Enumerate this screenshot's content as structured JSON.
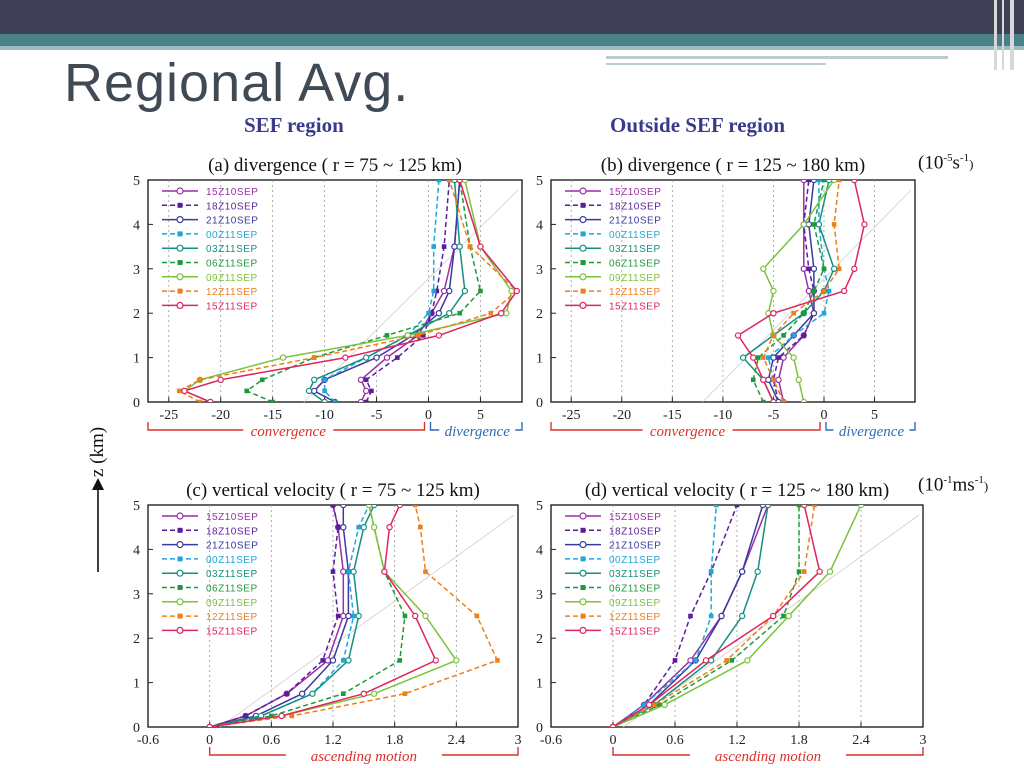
{
  "slide": {
    "title": "Regional Avg.",
    "region_left": "SEF region",
    "region_right": "Outside SEF region",
    "unit_div": {
      "base": "(10",
      "exp1": "-5",
      "mid": "s",
      "exp2": "-1",
      "end": ")"
    },
    "unit_w": {
      "base": "(10",
      "exp1": "-1",
      "mid": "ms",
      "exp2": "-1",
      "end": ")"
    }
  },
  "colors": {
    "15Z10SEP": "#9a2fa6",
    "18Z10SEP": "#5a1e9a",
    "21Z10SEP": "#3a3aa0",
    "00Z11SEP": "#1fa7d9",
    "03Z11SEP": "#13907e",
    "06Z11SEP": "#1f9a3a",
    "09Z11SEP": "#7cc23a",
    "12Z11SEP": "#ee7f1a",
    "15Z11SEP": "#e0245e"
  },
  "chart_data": [
    {
      "id": "a",
      "type": "line",
      "title": "(a) divergence ( r = 75 ~ 125 km)",
      "ylabel": "z (km)",
      "xlim": [
        -27,
        9
      ],
      "ylim": [
        0,
        5
      ],
      "xticks": [
        -25,
        -20,
        -15,
        -10,
        -5,
        0,
        5
      ],
      "yticks": [
        0,
        1,
        2,
        3,
        4,
        5
      ],
      "bracket_left": "convergence",
      "bracket_right": "divergence",
      "bracket_split": 0,
      "legend": "top-left",
      "series": [
        {
          "name": "15Z10SEP",
          "x": [
            -6.5,
            -6,
            -6.5,
            -4,
            -1,
            0.3,
            1.5,
            2.5,
            3
          ],
          "y": [
            0,
            0.25,
            0.5,
            1,
            1.5,
            2,
            2.5,
            3.5,
            5
          ]
        },
        {
          "name": "18Z10SEP",
          "x": [
            -6,
            -5.5,
            -6,
            -3,
            -0.5,
            0.3,
            0.8,
            1.5,
            2
          ],
          "y": [
            0,
            0.25,
            0.5,
            1,
            1.5,
            2,
            2.5,
            3.5,
            5
          ]
        },
        {
          "name": "21Z10SEP",
          "x": [
            -9,
            -11,
            -10,
            -5,
            -1.5,
            1,
            2,
            2.5,
            3
          ],
          "y": [
            0,
            0.25,
            0.5,
            1,
            1.5,
            2,
            2.5,
            3.5,
            5
          ]
        },
        {
          "name": "00Z11SEP",
          "x": [
            -9,
            -10,
            -10,
            -6,
            -2,
            0,
            0.5,
            0.5,
            1
          ],
          "y": [
            0,
            0.25,
            0.5,
            1,
            1.5,
            2,
            2.5,
            3.5,
            5
          ]
        },
        {
          "name": "03Z11SEP",
          "x": [
            -10,
            -11.5,
            -11,
            -6,
            -2,
            2,
            3.5,
            3,
            2.5
          ],
          "y": [
            0,
            0.25,
            0.5,
            1,
            1.5,
            2,
            2.5,
            3.5,
            5
          ]
        },
        {
          "name": "06Z11SEP",
          "x": [
            -15,
            -17.5,
            -16,
            -11,
            -4,
            3,
            5,
            4,
            3
          ],
          "y": [
            0,
            0.25,
            0.5,
            1,
            1.5,
            2,
            2.5,
            3.5,
            5
          ]
        },
        {
          "name": "09Z11SEP",
          "x": [
            -21,
            -23.5,
            -22,
            -14,
            -2,
            7.5,
            8,
            5,
            3.5
          ],
          "y": [
            0,
            0.25,
            0.5,
            1,
            1.5,
            2,
            2.5,
            3.5,
            5
          ]
        },
        {
          "name": "12Z11SEP",
          "x": [
            -22,
            -24,
            -22,
            -11,
            -1,
            6,
            8.5,
            4,
            2
          ],
          "y": [
            0,
            0.25,
            0.5,
            1,
            1.5,
            2,
            2.5,
            3.5,
            5
          ]
        },
        {
          "name": "15Z11SEP",
          "x": [
            -21,
            -23.5,
            -20,
            -8,
            1,
            7,
            8.5,
            5,
            3
          ],
          "y": [
            0,
            0.25,
            0.5,
            1,
            1.5,
            2,
            2.5,
            3.5,
            5
          ]
        }
      ]
    },
    {
      "id": "b",
      "type": "line",
      "title": "(b) divergence ( r = 125 ~ 180 km)",
      "xlim": [
        -27,
        9
      ],
      "ylim": [
        0,
        5
      ],
      "xticks": [
        -25,
        -20,
        -15,
        -10,
        -5,
        0,
        5
      ],
      "yticks": [
        0,
        1,
        2,
        3,
        4,
        5
      ],
      "bracket_left": "convergence",
      "bracket_right": "divergence",
      "bracket_split": 0,
      "legend": "top-left",
      "series": [
        {
          "name": "15Z10SEP",
          "x": [
            -4,
            -4.5,
            -4,
            -2,
            -1,
            -1.5,
            -2,
            -2,
            -2
          ],
          "y": [
            0,
            0.5,
            1,
            1.5,
            2,
            2.5,
            3,
            4,
            5
          ]
        },
        {
          "name": "18Z10SEP",
          "x": [
            -4.5,
            -5,
            -4.5,
            -2,
            -1,
            -1,
            -1.5,
            -2,
            -1.5
          ],
          "y": [
            0,
            0.5,
            1,
            1.5,
            2,
            2.5,
            3,
            4,
            5
          ]
        },
        {
          "name": "21Z10SEP",
          "x": [
            -4.5,
            -5.5,
            -5,
            -3,
            -1,
            -1,
            -1,
            -1.5,
            -1
          ],
          "y": [
            0,
            0.5,
            1,
            1.5,
            2,
            2.5,
            3,
            4,
            5
          ]
        },
        {
          "name": "00Z11SEP",
          "x": [
            -4,
            -5,
            -5.5,
            -3,
            0,
            0.5,
            0,
            -0.5,
            -0.5
          ],
          "y": [
            0,
            0.5,
            1,
            1.5,
            2,
            2.5,
            3,
            4,
            5
          ]
        },
        {
          "name": "03Z11SEP",
          "x": [
            -5,
            -6,
            -8,
            -5,
            -2,
            0,
            1,
            -0.5,
            0.5
          ],
          "y": [
            0,
            0.5,
            1,
            1.5,
            2,
            2.5,
            3,
            4,
            5
          ]
        },
        {
          "name": "06Z11SEP",
          "x": [
            -6,
            -7,
            -6.5,
            -4,
            -2,
            -1,
            0,
            -1,
            0
          ],
          "y": [
            0,
            0.5,
            1,
            1.5,
            2,
            2.5,
            3,
            4,
            5
          ]
        },
        {
          "name": "09Z11SEP",
          "x": [
            -2,
            -2.5,
            -3,
            -5,
            -5.5,
            -5,
            -6,
            -2,
            1
          ],
          "y": [
            0,
            0.5,
            1,
            1.5,
            2,
            2.5,
            3,
            4,
            5
          ]
        },
        {
          "name": "12Z11SEP",
          "x": [
            -4,
            -5,
            -6,
            -5,
            -3,
            0,
            1.5,
            1,
            1.5
          ],
          "y": [
            0,
            0.5,
            1,
            1.5,
            2,
            2.5,
            3,
            4,
            5
          ]
        },
        {
          "name": "15Z11SEP",
          "x": [
            -5,
            -6,
            -7,
            -8.5,
            -5,
            2,
            3,
            4,
            3
          ],
          "y": [
            0,
            0.5,
            1,
            1.5,
            2,
            2.5,
            3,
            4,
            5
          ]
        }
      ]
    },
    {
      "id": "c",
      "type": "line",
      "title": "(c) vertical velocity ( r = 75 ~ 125 km)",
      "xlim": [
        -0.6,
        3
      ],
      "ylim": [
        0,
        5
      ],
      "xticks": [
        -0.6,
        0,
        0.6,
        1.2,
        1.8,
        2.4,
        3
      ],
      "yticks": [
        0,
        1,
        2,
        3,
        4,
        5
      ],
      "bracket_label": "ascending motion",
      "legend": "top-left",
      "series": [
        {
          "name": "15Z10SEP",
          "x": [
            0,
            0.35,
            0.75,
            1.15,
            1.3,
            1.3,
            1.25,
            1.2
          ],
          "y": [
            0,
            0.25,
            0.75,
            1.5,
            2.5,
            3.5,
            4.5,
            5
          ]
        },
        {
          "name": "18Z10SEP",
          "x": [
            0,
            0.35,
            0.75,
            1.1,
            1.25,
            1.2,
            1.25,
            1.2
          ],
          "y": [
            0,
            0.25,
            0.75,
            1.5,
            2.5,
            3.5,
            4.5,
            5
          ]
        },
        {
          "name": "21Z10SEP",
          "x": [
            0,
            0.45,
            0.9,
            1.2,
            1.35,
            1.35,
            1.3,
            1.3
          ],
          "y": [
            0,
            0.25,
            0.75,
            1.5,
            2.5,
            3.5,
            4.5,
            5
          ]
        },
        {
          "name": "00Z11SEP",
          "x": [
            0,
            0.5,
            1.0,
            1.3,
            1.4,
            1.35,
            1.45,
            1.55
          ],
          "y": [
            0,
            0.25,
            0.75,
            1.5,
            2.5,
            3.5,
            4.5,
            5
          ]
        },
        {
          "name": "03Z11SEP",
          "x": [
            0,
            0.5,
            1.0,
            1.35,
            1.45,
            1.4,
            1.5,
            1.6
          ],
          "y": [
            0,
            0.25,
            0.75,
            1.5,
            2.5,
            3.5,
            4.5,
            5
          ]
        },
        {
          "name": "06Z11SEP",
          "x": [
            0,
            0.6,
            1.3,
            1.85,
            1.9,
            1.7,
            1.6,
            1.55
          ],
          "y": [
            0,
            0.25,
            0.75,
            1.5,
            2.5,
            3.5,
            4.5,
            5
          ]
        },
        {
          "name": "09Z11SEP",
          "x": [
            0,
            0.7,
            1.6,
            2.4,
            2.1,
            1.7,
            1.6,
            1.55
          ],
          "y": [
            0,
            0.25,
            0.75,
            1.5,
            2.5,
            3.5,
            4.5,
            5
          ]
        },
        {
          "name": "12Z11SEP",
          "x": [
            0,
            0.8,
            1.9,
            2.8,
            2.6,
            2.1,
            2.05,
            2.0
          ],
          "y": [
            0,
            0.25,
            0.75,
            1.5,
            2.5,
            3.5,
            4.5,
            5
          ]
        },
        {
          "name": "15Z11SEP",
          "x": [
            0,
            0.7,
            1.5,
            2.2,
            2.0,
            1.7,
            1.75,
            1.85
          ],
          "y": [
            0,
            0.25,
            0.75,
            1.5,
            2.5,
            3.5,
            4.5,
            5
          ]
        }
      ]
    },
    {
      "id": "d",
      "type": "line",
      "title": "(d) vertical velocity ( r = 125 ~ 180 km)",
      "xlim": [
        -0.6,
        3
      ],
      "ylim": [
        0,
        5
      ],
      "xticks": [
        -0.6,
        0,
        0.6,
        1.2,
        1.8,
        2.4,
        3
      ],
      "yticks": [
        0,
        1,
        2,
        3,
        4,
        5
      ],
      "bracket_label": "ascending motion",
      "legend": "top-left",
      "series": [
        {
          "name": "15Z10SEP",
          "x": [
            0,
            0.3,
            0.75,
            1.05,
            1.25,
            1.5
          ],
          "y": [
            0,
            0.5,
            1.5,
            2.5,
            3.5,
            5
          ]
        },
        {
          "name": "18Z10SEP",
          "x": [
            0,
            0.3,
            0.6,
            0.75,
            0.95,
            1.2
          ],
          "y": [
            0,
            0.5,
            1.5,
            2.5,
            3.5,
            5
          ]
        },
        {
          "name": "21Z10SEP",
          "x": [
            0,
            0.35,
            0.8,
            1.05,
            1.25,
            1.45
          ],
          "y": [
            0,
            0.5,
            1.5,
            2.5,
            3.5,
            5
          ]
        },
        {
          "name": "00Z11SEP",
          "x": [
            0,
            0.3,
            0.8,
            0.95,
            0.95,
            1.0
          ],
          "y": [
            0,
            0.5,
            1.5,
            2.5,
            3.5,
            5
          ]
        },
        {
          "name": "03Z11SEP",
          "x": [
            0,
            0.4,
            0.95,
            1.25,
            1.4,
            1.5
          ],
          "y": [
            0,
            0.5,
            1.5,
            2.5,
            3.5,
            5
          ]
        },
        {
          "name": "06Z11SEP",
          "x": [
            0,
            0.45,
            1.15,
            1.65,
            1.8,
            1.8
          ],
          "y": [
            0,
            0.5,
            1.5,
            2.5,
            3.5,
            5
          ]
        },
        {
          "name": "09Z11SEP",
          "x": [
            0,
            0.5,
            1.3,
            1.7,
            2.1,
            2.4
          ],
          "y": [
            0,
            0.5,
            1.5,
            2.5,
            3.5,
            5
          ]
        },
        {
          "name": "12Z11SEP",
          "x": [
            0,
            0.4,
            1.1,
            1.55,
            1.85,
            1.95
          ],
          "y": [
            0,
            0.5,
            1.5,
            2.5,
            3.5,
            5
          ]
        },
        {
          "name": "15Z11SEP",
          "x": [
            0,
            0.35,
            0.9,
            1.55,
            2.0,
            1.85
          ],
          "y": [
            0,
            0.5,
            1.5,
            2.5,
            3.5,
            5
          ]
        }
      ]
    }
  ]
}
